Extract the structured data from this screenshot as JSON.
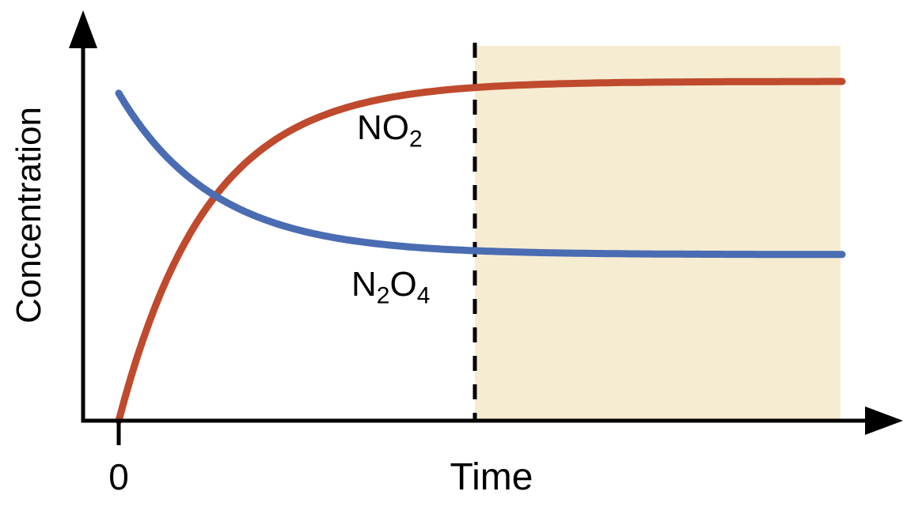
{
  "figure": {
    "background": "#ffffff",
    "axis_color": "#000000",
    "text_color": "#000000"
  },
  "axis_labels": {
    "y": "Concentration",
    "x": "Time",
    "origin": "0"
  },
  "curve_labels": {
    "no2": {
      "base": "NO",
      "sub": "2"
    },
    "n2o4": {
      "part1": "N",
      "sub1": "2",
      "part2": "O",
      "sub2": "4"
    }
  },
  "chart_data": {
    "type": "line",
    "title": "",
    "xlabel": "Time",
    "ylabel": "Concentration",
    "x_tick_labels": [
      "0"
    ],
    "y_tick_labels": [],
    "x_range_normalized": [
      0,
      1
    ],
    "y_range_normalized": [
      0,
      1
    ],
    "grid": false,
    "legend_position": "inline-curve-labels",
    "series": [
      {
        "name": "NO2",
        "color": "#bf4a2d",
        "shape": "exponential-rise",
        "start_value": 0.0,
        "equilibrium_value": 0.913,
        "time_constant": 0.123
      },
      {
        "name": "N2O4",
        "color": "#4a6cb3",
        "shape": "exponential-decay",
        "start_value": 0.881,
        "equilibrium_value": 0.447,
        "time_constant": 0.132
      }
    ],
    "curves_cross_at_time_normalized": 0.14,
    "equilibrium_marker": {
      "time_normalized": 0.492,
      "style": "vertical-dashed-line",
      "color": "#000000"
    },
    "shaded_region": {
      "from_time_normalized": 0.492,
      "to_time_normalized": 1.0,
      "color": "#f5ecd2"
    }
  }
}
